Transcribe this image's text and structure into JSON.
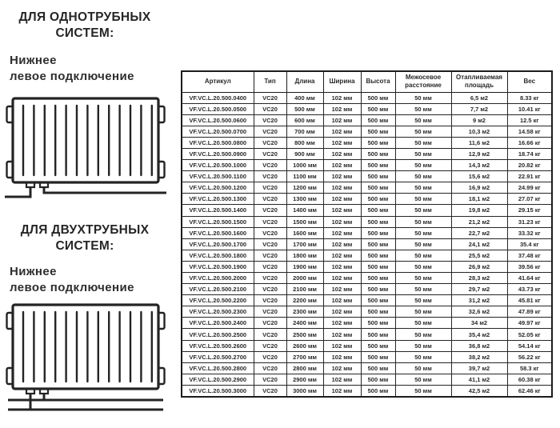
{
  "left_panel": {
    "sections": [
      {
        "heading_line1": "ДЛЯ ОДНОТРУБНЫХ",
        "heading_line2": "СИСТЕМ:",
        "sub_line1": "Нижнее",
        "sub_line2": "левое подключение",
        "diagram": "radiator-single-pipe-bottom-left-connection"
      },
      {
        "heading_line1": "ДЛЯ ДВУХТРУБНЫХ",
        "heading_line2": "СИСТЕМ:",
        "sub_line1": "Нижнее",
        "sub_line2": "левое подключение",
        "diagram": "radiator-two-pipe-bottom-left-connection"
      }
    ]
  },
  "table": {
    "headers": [
      "Артикул",
      "Тип",
      "Длина",
      "Ширина",
      "Высота",
      "Межосевое расстояние",
      "Отапливаемая площадь",
      "Вес"
    ],
    "rows": [
      [
        "VF.VC.L.20.500.0400",
        "VC20",
        "400 мм",
        "102 мм",
        "500 мм",
        "50 мм",
        "6,5 м2",
        "8.33 кг"
      ],
      [
        "VF.VC.L.20.500.0500",
        "VC20",
        "500 мм",
        "102 мм",
        "500 мм",
        "50 мм",
        "7,7 м2",
        "10.41 кг"
      ],
      [
        "VF.VC.L.20.500.0600",
        "VC20",
        "600 мм",
        "102 мм",
        "500 мм",
        "50 мм",
        "9 м2",
        "12.5 кг"
      ],
      [
        "VF.VC.L.20.500.0700",
        "VC20",
        "700 мм",
        "102 мм",
        "500 мм",
        "50 мм",
        "10,3 м2",
        "14.58 кг"
      ],
      [
        "VF.VC.L.20.500.0800",
        "VC20",
        "800 мм",
        "102 мм",
        "500 мм",
        "50 мм",
        "11,6 м2",
        "16.66 кг"
      ],
      [
        "VF.VC.L.20.500.0900",
        "VC20",
        "900 мм",
        "102 мм",
        "500 мм",
        "50 мм",
        "12,9 м2",
        "18.74 кг"
      ],
      [
        "VF.VC.L.20.500.1000",
        "VC20",
        "1000 мм",
        "102 мм",
        "500 мм",
        "50 мм",
        "14,3 м2",
        "20.82 кг"
      ],
      [
        "VF.VC.L.20.500.1100",
        "VC20",
        "1100 мм",
        "102 мм",
        "500 мм",
        "50 мм",
        "15,6 м2",
        "22.91 кг"
      ],
      [
        "VF.VC.L.20.500.1200",
        "VC20",
        "1200 мм",
        "102 мм",
        "500 мм",
        "50 мм",
        "16,9 м2",
        "24.99 кг"
      ],
      [
        "VF.VC.L.20.500.1300",
        "VC20",
        "1300 мм",
        "102 мм",
        "500 мм",
        "50 мм",
        "18,1 м2",
        "27.07 кг"
      ],
      [
        "VF.VC.L.20.500.1400",
        "VC20",
        "1400 мм",
        "102 мм",
        "500 мм",
        "50 мм",
        "19,8 м2",
        "29.15 кг"
      ],
      [
        "VF.VC.L.20.500.1500",
        "VC20",
        "1500 мм",
        "102 мм",
        "500 мм",
        "50 мм",
        "21,2 м2",
        "31.23 кг"
      ],
      [
        "VF.VC.L.20.500.1600",
        "VC20",
        "1600 мм",
        "102 мм",
        "500 мм",
        "50 мм",
        "22,7 м2",
        "33.32 кг"
      ],
      [
        "VF.VC.L.20.500.1700",
        "VC20",
        "1700 мм",
        "102 мм",
        "500 мм",
        "50 мм",
        "24,1 м2",
        "35.4 кг"
      ],
      [
        "VF.VC.L.20.500.1800",
        "VC20",
        "1800 мм",
        "102 мм",
        "500 мм",
        "50 мм",
        "25,5 м2",
        "37.48 кг"
      ],
      [
        "VF.VC.L.20.500.1900",
        "VC20",
        "1900 мм",
        "102 мм",
        "500 мм",
        "50 мм",
        "26,9 м2",
        "39.56 кг"
      ],
      [
        "VF.VC.L.20.500.2000",
        "VC20",
        "2000 мм",
        "102 мм",
        "500 мм",
        "50 мм",
        "28,3 м2",
        "41.64 кг"
      ],
      [
        "VF.VC.L.20.500.2100",
        "VC20",
        "2100 мм",
        "102 мм",
        "500 мм",
        "50 мм",
        "29,7 м2",
        "43.73 кг"
      ],
      [
        "VF.VC.L.20.500.2200",
        "VC20",
        "2200 мм",
        "102 мм",
        "500 мм",
        "50 мм",
        "31,2 м2",
        "45.81 кг"
      ],
      [
        "VF.VC.L.20.500.2300",
        "VC20",
        "2300 мм",
        "102 мм",
        "500 мм",
        "50 мм",
        "32,6 м2",
        "47.89 кг"
      ],
      [
        "VF.VC.L.20.500.2400",
        "VC20",
        "2400 мм",
        "102 мм",
        "500 мм",
        "50 мм",
        "34 м2",
        "49.97 кг"
      ],
      [
        "VF.VC.L.20.500.2500",
        "VC20",
        "2500 мм",
        "102 мм",
        "500 мм",
        "50 мм",
        "35,4 м2",
        "52.05 кг"
      ],
      [
        "VF.VC.L.20.500.2600",
        "VC20",
        "2600 мм",
        "102 мм",
        "500 мм",
        "50 мм",
        "36,8 м2",
        "54.14 кг"
      ],
      [
        "VF.VC.L.20.500.2700",
        "VC20",
        "2700 мм",
        "102 мм",
        "500 мм",
        "50 мм",
        "38,2 м2",
        "56.22 кг"
      ],
      [
        "VF.VC.L.20.500.2800",
        "VC20",
        "2800 мм",
        "102 мм",
        "500 мм",
        "50 мм",
        "39,7 м2",
        "58.3 кг"
      ],
      [
        "VF.VC.L.20.500.2900",
        "VC20",
        "2900 мм",
        "102 мм",
        "500 мм",
        "50 мм",
        "41,1 м2",
        "60.38 кг"
      ],
      [
        "VF.VC.L.20.500.3000",
        "VC20",
        "3000 мм",
        "102 мм",
        "500 мм",
        "50 мм",
        "42,5 м2",
        "62.46 кг"
      ]
    ]
  },
  "colors": {
    "background": "#ffffff",
    "text": "#2a2a2a",
    "border": "#1c1c1c"
  }
}
